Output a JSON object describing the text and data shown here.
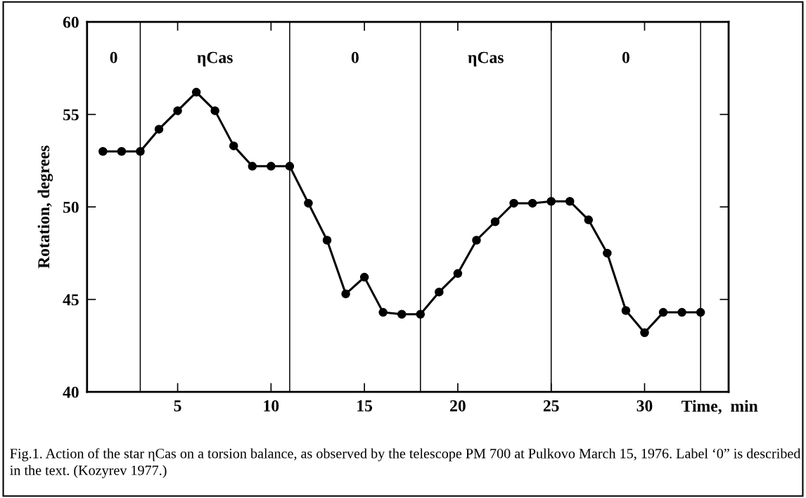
{
  "chart_data": {
    "type": "line",
    "ylabel": "Rotation, degrees",
    "xlabel": "Time,  min",
    "x": [
      1,
      2,
      3,
      4,
      5,
      6,
      7,
      8,
      9,
      10,
      11,
      12,
      13,
      14,
      15,
      16,
      17,
      18,
      19,
      20,
      21,
      22,
      23,
      24,
      25,
      26,
      27,
      28,
      29,
      30,
      31,
      32,
      33
    ],
    "series": [
      {
        "color": "#000000",
        "values": [
          53.0,
          53.0,
          53.0,
          54.2,
          55.2,
          56.2,
          55.2,
          53.3,
          52.2,
          52.2,
          52.2,
          50.2,
          48.2,
          45.3,
          46.2,
          44.3,
          44.2,
          44.2,
          45.4,
          46.4,
          48.2,
          49.2,
          50.2,
          50.2,
          50.3,
          50.3,
          49.3,
          47.5,
          44.4,
          43.2,
          44.3,
          44.3,
          44.3
        ]
      }
    ],
    "xlim": [
      0.15,
      34.5
    ],
    "ylim": [
      40,
      60
    ],
    "xticks": [
      5,
      10,
      15,
      20,
      25,
      30
    ],
    "yticks": [
      40,
      45,
      50,
      55,
      60
    ],
    "ref_lines": [
      {
        "axis": "x",
        "value": 3,
        "color": "#000000"
      },
      {
        "axis": "x",
        "value": 11,
        "color": "#000000"
      },
      {
        "axis": "x",
        "value": 18,
        "color": "#000000"
      },
      {
        "axis": "x",
        "value": 25,
        "color": "#000000"
      },
      {
        "axis": "x",
        "value": 33,
        "color": "#000000"
      }
    ],
    "annotations": [
      "0",
      "ηCas",
      "0",
      "ηCas",
      "0",
      "Fig.1. Action of the star ηCas on a torsion balance, as observed by the telescope PM 700 at Pulkovo March 15, 1976. Label ‘0” is described in the text. (Kozyrev 1977.)"
    ],
    "marker": "circle",
    "line_style": "solid",
    "grid": false,
    "legend": false
  }
}
